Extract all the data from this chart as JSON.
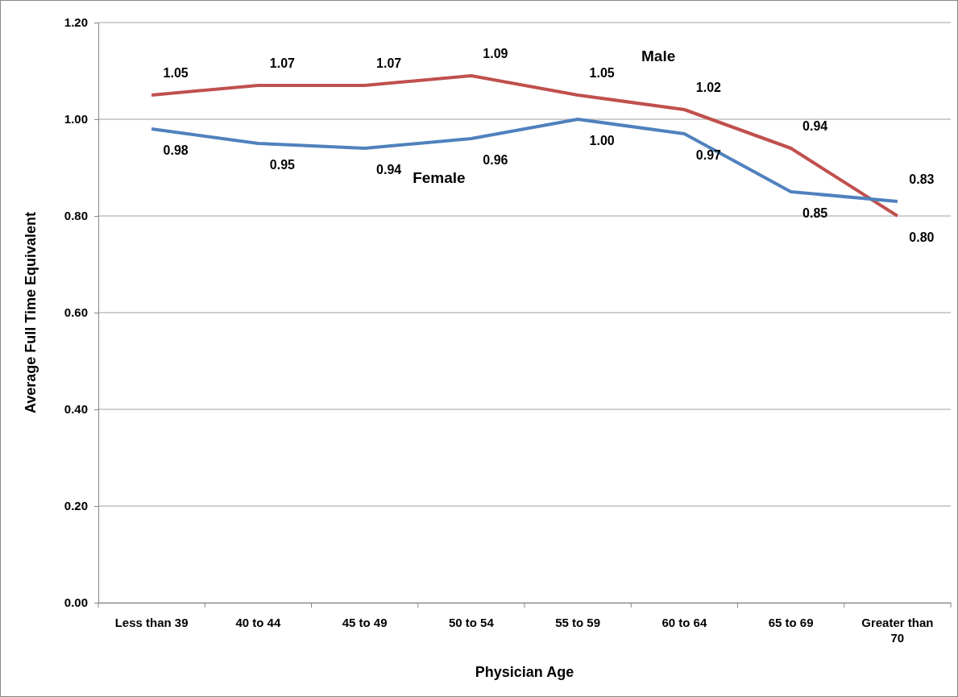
{
  "chart_data": {
    "type": "line",
    "xlabel": "Physician Age",
    "ylabel": "Average Full Time Equivalent",
    "categories": [
      "Less than 39",
      "40 to 44",
      "45 to 49",
      "50 to 54",
      "55 to 59",
      "60 to 64",
      "65 to 69",
      "Greater than 70"
    ],
    "series": [
      {
        "name": "Male",
        "color": "#c0504d",
        "values": [
          1.05,
          1.07,
          1.07,
          1.09,
          1.05,
          1.02,
          0.94,
          0.8
        ],
        "value_labels": [
          "1.05",
          "1.07",
          "1.07",
          "1.09",
          "1.05",
          "1.02",
          "0.94",
          "0.80"
        ]
      },
      {
        "name": "Female",
        "color": "#4f81bd",
        "values": [
          0.98,
          0.95,
          0.94,
          0.96,
          1.0,
          0.97,
          0.85,
          0.83
        ],
        "value_labels": [
          "0.98",
          "0.95",
          "0.94",
          "0.96",
          "1.00",
          "0.97",
          "0.85",
          "0.83"
        ]
      }
    ],
    "ylim": [
      0,
      1.2
    ],
    "yticks": [
      {
        "value": 0,
        "label": "0.00"
      },
      {
        "value": 0.2,
        "label": "0.20"
      },
      {
        "value": 0.4,
        "label": "0.40"
      },
      {
        "value": 0.6,
        "label": "0.60"
      },
      {
        "value": 0.8,
        "label": "0.80"
      },
      {
        "value": 1.0,
        "label": "1.00"
      },
      {
        "value": 1.2,
        "label": "1.20"
      }
    ],
    "grid": "y",
    "marker": "none",
    "line_style": "solid"
  }
}
